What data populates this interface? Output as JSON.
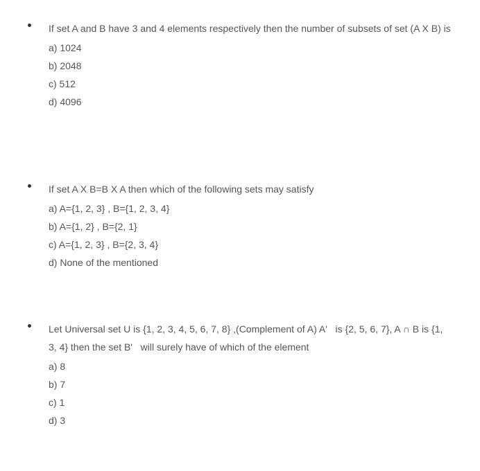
{
  "questions": [
    {
      "text": "If set A and B have 3 and 4 elements respectively then the number of subsets of set (A X B) is",
      "options": [
        "a) 1024",
        "b) 2048",
        "c) 512",
        "d) 4096"
      ]
    },
    {
      "text": "If set A X B=B X A then which of the following sets may satisfy",
      "options": [
        "a) A={1, 2, 3} , B={1, 2, 3, 4}",
        "b) A={1, 2} , B={2, 1}",
        "c) A={1, 2, 3} , B={2, 3, 4}",
        "d) None of the mentioned"
      ]
    },
    {
      "text": "Let Universal set U is {1, 2, 3, 4, 5, 6, 7, 8} ,(Complement of A) A'   is {2, 5, 6, 7}, A ∩ B is {1, 3, 4} then the set B'   will surely have of which of the element",
      "options": [
        "a) 8",
        "b) 7",
        "c) 1",
        "d) 3"
      ]
    }
  ],
  "style": {
    "text_color": "#555555",
    "bullet_color": "#333333",
    "background_color": "#ffffff",
    "font_size": 14,
    "line_height": 26
  }
}
